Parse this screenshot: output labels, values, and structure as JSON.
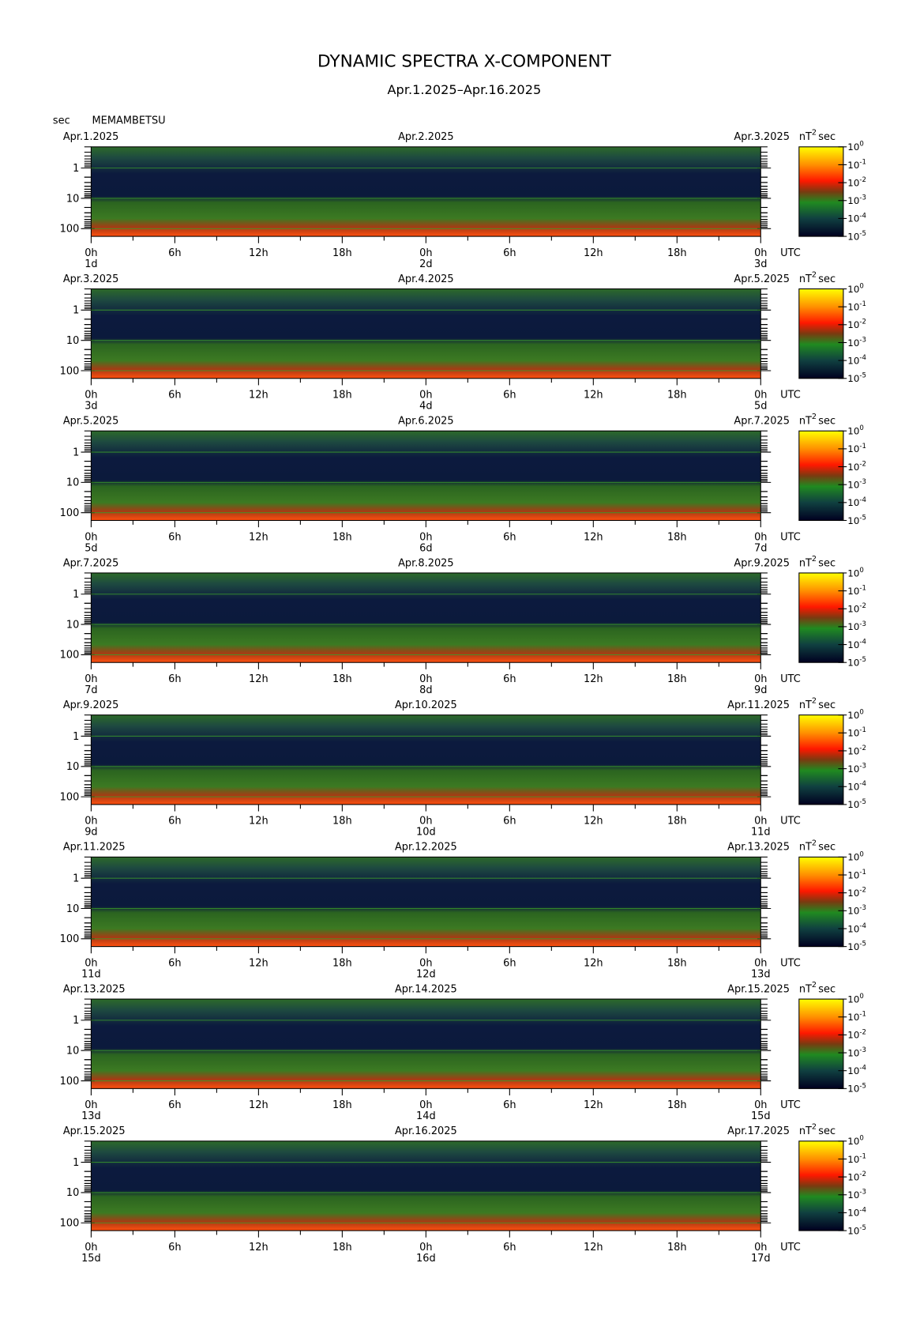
{
  "figure": {
    "title": "DYNAMIC SPECTRA X-COMPONENT",
    "subtitle": "Apr.1.2025–Apr.16.2025",
    "station": "MEMAMBETSU",
    "y_axis": {
      "unit": "sec",
      "scale": "log",
      "lim": [
        180,
        0.2
      ],
      "ticks": [
        1,
        10,
        100
      ]
    },
    "x_axis": {
      "unit": "UTC",
      "lim": [
        0,
        48
      ],
      "ticks": [
        {
          "value": 0,
          "label": "0h"
        },
        {
          "value": 6,
          "label": "6h"
        },
        {
          "value": 12,
          "label": "12h"
        },
        {
          "value": 18,
          "label": "18h"
        },
        {
          "value": 24,
          "label": "0h"
        },
        {
          "value": 30,
          "label": "6h"
        },
        {
          "value": 36,
          "label": "12h"
        },
        {
          "value": 42,
          "label": "18h"
        },
        {
          "value": 48,
          "label": "0h"
        }
      ]
    },
    "colorbar": {
      "unit": "nT",
      "unit_power": "2",
      "unit_time": "sec",
      "base": "10",
      "lim": [
        -5,
        0
      ],
      "ticks": [
        0,
        -1,
        -2,
        -3,
        -4,
        -5
      ]
    },
    "panels": [
      {
        "start_date": "Apr.1.2025",
        "mid_date": "Apr.2.2025",
        "end_date": "Apr.3.2025",
        "day_labels": [
          "1d",
          "2d",
          "3d"
        ]
      },
      {
        "start_date": "Apr.3.2025",
        "mid_date": "Apr.4.2025",
        "end_date": "Apr.5.2025",
        "day_labels": [
          "3d",
          "4d",
          "5d"
        ]
      },
      {
        "start_date": "Apr.5.2025",
        "mid_date": "Apr.6.2025",
        "end_date": "Apr.7.2025",
        "day_labels": [
          "5d",
          "6d",
          "7d"
        ]
      },
      {
        "start_date": "Apr.7.2025",
        "mid_date": "Apr.8.2025",
        "end_date": "Apr.9.2025",
        "day_labels": [
          "7d",
          "8d",
          "9d"
        ]
      },
      {
        "start_date": "Apr.9.2025",
        "mid_date": "Apr.10.2025",
        "end_date": "Apr.11.2025",
        "day_labels": [
          "9d",
          "10d",
          "11d"
        ]
      },
      {
        "start_date": "Apr.11.2025",
        "mid_date": "Apr.12.2025",
        "end_date": "Apr.13.2025",
        "day_labels": [
          "11d",
          "12d",
          "13d"
        ]
      },
      {
        "start_date": "Apr.13.2025",
        "mid_date": "Apr.14.2025",
        "end_date": "Apr.15.2025",
        "day_labels": [
          "13d",
          "14d",
          "15d"
        ]
      },
      {
        "start_date": "Apr.15.2025",
        "mid_date": "Apr.16.2025",
        "end_date": "Apr.17.2025",
        "day_labels": [
          "15d",
          "16d",
          "17d"
        ]
      }
    ]
  }
}
